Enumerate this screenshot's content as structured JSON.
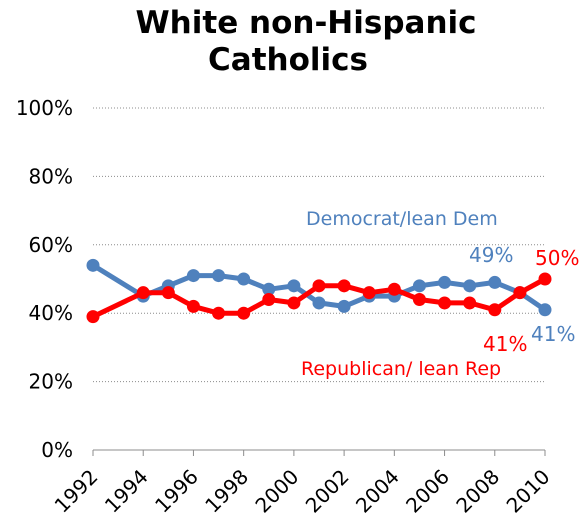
{
  "chart_data": {
    "type": "line",
    "title": [
      "White non-Hispanic",
      "Catholics"
    ],
    "xlabel": "",
    "ylabel": "",
    "ylim": [
      0,
      100
    ],
    "yticks": [
      "0%",
      "20%",
      "40%",
      "60%",
      "80%",
      "100%"
    ],
    "yticks_values": [
      0,
      20,
      40,
      60,
      80,
      100
    ],
    "xticks": [
      "1992",
      "1994",
      "1996",
      "1998",
      "2000",
      "2002",
      "2004",
      "2006",
      "2008",
      "2010"
    ],
    "xlim": [
      1992,
      2010
    ],
    "grid": "horizontal dotted",
    "legend": "none (series labeled directly on chart)",
    "x": [
      1992,
      1994,
      1995,
      1996,
      1997,
      1998,
      1999,
      2000,
      2001,
      2002,
      2003,
      2004,
      2005,
      2006,
      2007,
      2008,
      2009,
      2010
    ],
    "series": [
      {
        "name": "Democrat/lean Dem",
        "color": "#4f81bd",
        "values": [
          54,
          45,
          48,
          51,
          51,
          50,
          47,
          48,
          43,
          42,
          45,
          45,
          48,
          49,
          48,
          49,
          46,
          41
        ]
      },
      {
        "name": "Republican/ lean Rep",
        "color": "#ff0000",
        "values": [
          39,
          46,
          46,
          42,
          40,
          40,
          44,
          43,
          48,
          48,
          46,
          47,
          44,
          43,
          43,
          41,
          46,
          50
        ]
      }
    ],
    "annotations": [
      {
        "text": "Democrat/lean Dem",
        "series": 0
      },
      {
        "text": "49%",
        "series": 0,
        "x": 2008
      },
      {
        "text": "41%",
        "series": 0,
        "x": 2010
      },
      {
        "text": "Republican/ lean Rep",
        "series": 1
      },
      {
        "text": "41%",
        "series": 1,
        "x": 2008
      },
      {
        "text": "50%",
        "series": 1,
        "x": 2010
      }
    ]
  }
}
